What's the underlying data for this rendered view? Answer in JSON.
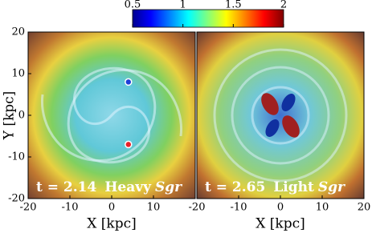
{
  "chart_data": {
    "type": "heatmap",
    "colorbar": {
      "clim": [
        0.5,
        2
      ],
      "ticks": [
        0.5,
        1,
        1.5,
        2
      ]
    },
    "ylabel": "Y [kpc]",
    "panels": [
      {
        "xlim": [
          -20,
          20
        ],
        "ylim": [
          -20,
          20
        ],
        "xticks": [
          -20,
          -10,
          0,
          10
        ],
        "yticks": [
          20,
          10,
          0,
          -10,
          -20
        ],
        "xlabel": "X [kpc]",
        "time_label": "t = 2.14",
        "label": "Heavy",
        "label_italic": "Sgr",
        "points": [
          {
            "x": 4,
            "y": 8,
            "color": "#1f3fd8"
          },
          {
            "x": 4,
            "y": -7,
            "color": "#e8202a"
          }
        ]
      },
      {
        "xlim": [
          -20,
          20
        ],
        "ylim": [
          -20,
          20
        ],
        "xticks": [
          -20,
          -10,
          0,
          10,
          20
        ],
        "xlabel": "X [kpc]",
        "time_label": "t = 2.65",
        "label": "Light",
        "label_italic": "Sgr"
      }
    ]
  }
}
